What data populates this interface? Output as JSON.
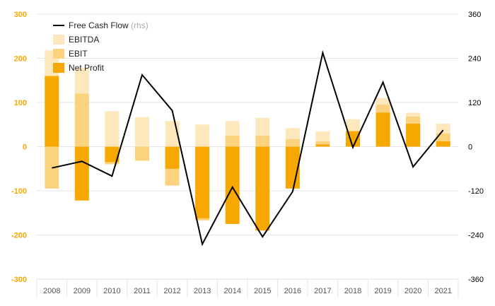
{
  "chart_data": {
    "type": "bar",
    "categories": [
      "2008",
      "2009",
      "2010",
      "2011",
      "2012",
      "2013",
      "2014",
      "2015",
      "2016",
      "2017",
      "2018",
      "2019",
      "2020",
      "2021"
    ],
    "ylim": [
      -300,
      300
    ],
    "y_ticks": [
      "300",
      "200",
      "100",
      "0",
      "-100",
      "-200",
      "-300"
    ],
    "y2lim": [
      -360,
      360
    ],
    "y2_ticks": [
      "360",
      "240",
      "120",
      "0",
      "-120",
      "-240",
      "-360"
    ],
    "grid": true,
    "legend_position": "top-left",
    "series": [
      {
        "name": "EBITDA",
        "kind": "bar",
        "color": "#fde8bd",
        "values": [
          218,
          178,
          80,
          67,
          58,
          50,
          58,
          65,
          42,
          35,
          62,
          110,
          77,
          52
        ]
      },
      {
        "name": "EBIT",
        "kind": "bar",
        "color": "#fbd37e",
        "values": [
          -95,
          120,
          -40,
          -32,
          -88,
          -167,
          25,
          25,
          17,
          12,
          35,
          95,
          68,
          30
        ]
      },
      {
        "name": "Net Profit",
        "kind": "bar",
        "color": "#f6a800",
        "values": [
          160,
          -122,
          -35,
          0,
          -50,
          -162,
          -175,
          -190,
          -95,
          5,
          35,
          77,
          52,
          12
        ]
      },
      {
        "name": "Free Cash Flow",
        "name_note": "(rhs)",
        "kind": "line",
        "axis": "right",
        "color": "#000000",
        "values": [
          -58,
          -40,
          -80,
          195,
          98,
          -265,
          -110,
          -245,
          -122,
          255,
          -2,
          175,
          -55,
          45
        ]
      }
    ]
  }
}
